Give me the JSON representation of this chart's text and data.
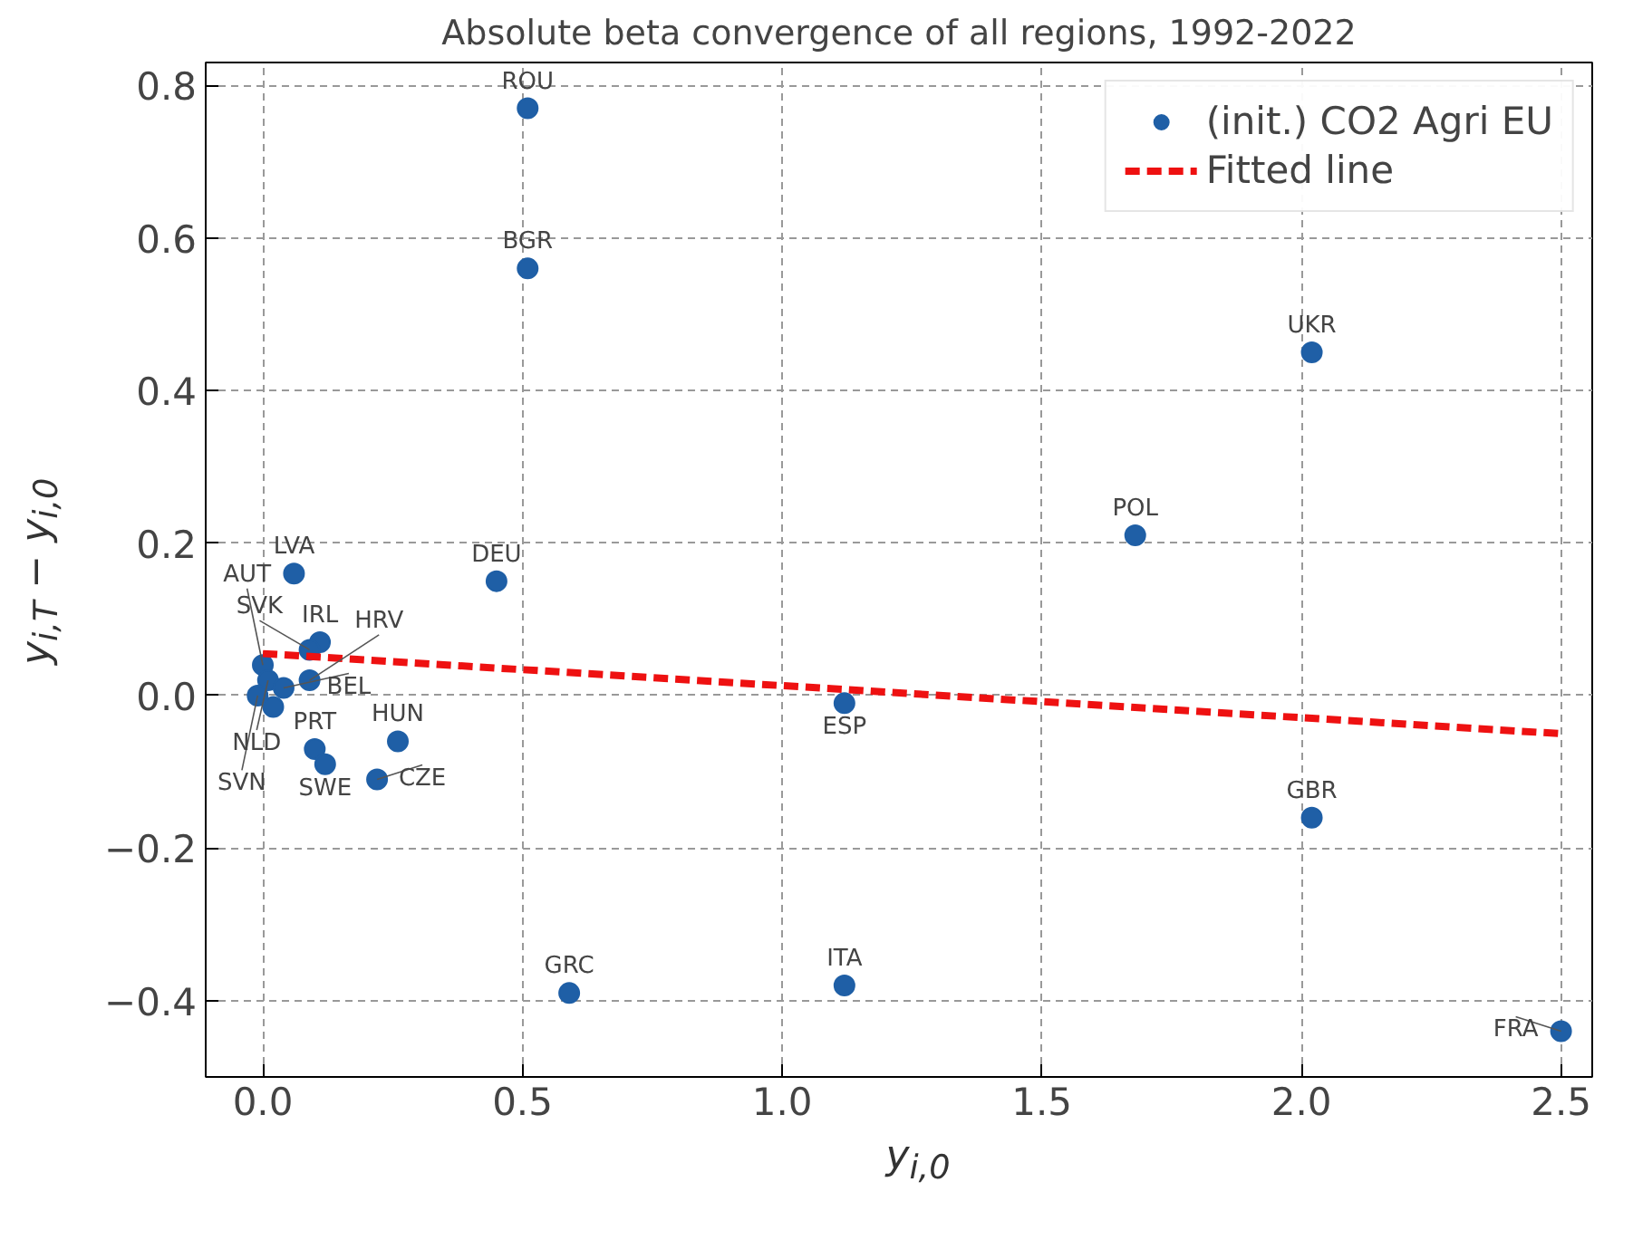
{
  "chart_data": {
    "type": "scatter",
    "title": "Absolute beta convergence of all regions, 1992-2022",
    "xlabel": "y$_{i,0}$",
    "ylabel": "y$_{i,T}$ − y$_{i,0}$",
    "xlim": [
      -0.11,
      2.56
    ],
    "ylim": [
      -0.5,
      0.83
    ],
    "xticks": [
      {
        "value": 0,
        "label": "0.0"
      },
      0.5,
      {
        "value": 1,
        "label": "1.0"
      },
      1.5,
      {
        "value": 2,
        "label": "2.0"
      },
      2.5
    ],
    "yticks": [
      {
        "value": -0.4,
        "label": "−0.4"
      },
      {
        "value": -0.2,
        "label": "−0.2"
      },
      {
        "value": 0,
        "label": "0.0"
      },
      0.2,
      0.4,
      0.6,
      0.8
    ],
    "grid": true,
    "legend": "top right",
    "marker": "circle",
    "series": [
      {
        "name": "(init.) CO2 Agri EU",
        "color": "#1f5fa6",
        "x": [
          0.51,
          0.51,
          2.02,
          1.68,
          0.06,
          0.45,
          1.12,
          0.11,
          0.09,
          0.26,
          0.1,
          0.12,
          0.22,
          2.02,
          0.59,
          1.12,
          2.5,
          0.0,
          0.01,
          0.04,
          0.09,
          -0.01,
          0.02
        ],
        "values": [
          0.77,
          0.56,
          0.45,
          0.21,
          0.16,
          0.15,
          -0.01,
          0.07,
          0.06,
          -0.06,
          -0.07,
          -0.09,
          -0.11,
          -0.16,
          -0.39,
          -0.38,
          -0.44,
          0.04,
          0.02,
          0.01,
          0.02,
          0.0,
          -0.015
        ]
      },
      {
        "name": "Fitted line",
        "type": "line",
        "color": "#ee1111",
        "line_style": "dashed",
        "marker": "none",
        "x": [
          0.0,
          2.5
        ],
        "values": [
          0.055,
          -0.05
        ]
      }
    ],
    "annotations": [
      {
        "text": "ROU",
        "x": 0.51,
        "y": 0.77
      },
      {
        "text": "BGR",
        "x": 0.51,
        "y": 0.56
      },
      {
        "text": "UKR",
        "x": 2.02,
        "y": 0.45
      },
      {
        "text": "POL",
        "x": 1.68,
        "y": 0.21
      },
      {
        "text": "LVA",
        "x": 0.06,
        "y": 0.16
      },
      {
        "text": "DEU",
        "x": 0.45,
        "y": 0.15
      },
      {
        "text": "ESP",
        "x": 1.12,
        "y": -0.01
      },
      {
        "text": "IRL",
        "x": 0.11,
        "y": 0.07
      },
      {
        "text": "SVK",
        "x": 0.09,
        "y": 0.06
      },
      {
        "text": "HUN",
        "x": 0.26,
        "y": -0.06
      },
      {
        "text": "PRT",
        "x": 0.1,
        "y": -0.07
      },
      {
        "text": "SWE",
        "x": 0.12,
        "y": -0.09
      },
      {
        "text": "CZE",
        "x": 0.22,
        "y": -0.11
      },
      {
        "text": "GBR",
        "x": 2.02,
        "y": -0.16
      },
      {
        "text": "GRC",
        "x": 0.59,
        "y": -0.39
      },
      {
        "text": "ITA",
        "x": 1.12,
        "y": -0.38
      },
      {
        "text": "FRA",
        "x": 2.5,
        "y": -0.44
      },
      {
        "text": "AUT",
        "x": 0.0,
        "y": 0.04
      },
      {
        "text": "NLD",
        "x": 0.01,
        "y": 0.02
      },
      {
        "text": "BEL",
        "x": 0.04,
        "y": 0.01
      },
      {
        "text": "HRV",
        "x": 0.09,
        "y": 0.02
      },
      {
        "text": "SVN",
        "x": -0.01,
        "y": 0.0
      }
    ]
  }
}
